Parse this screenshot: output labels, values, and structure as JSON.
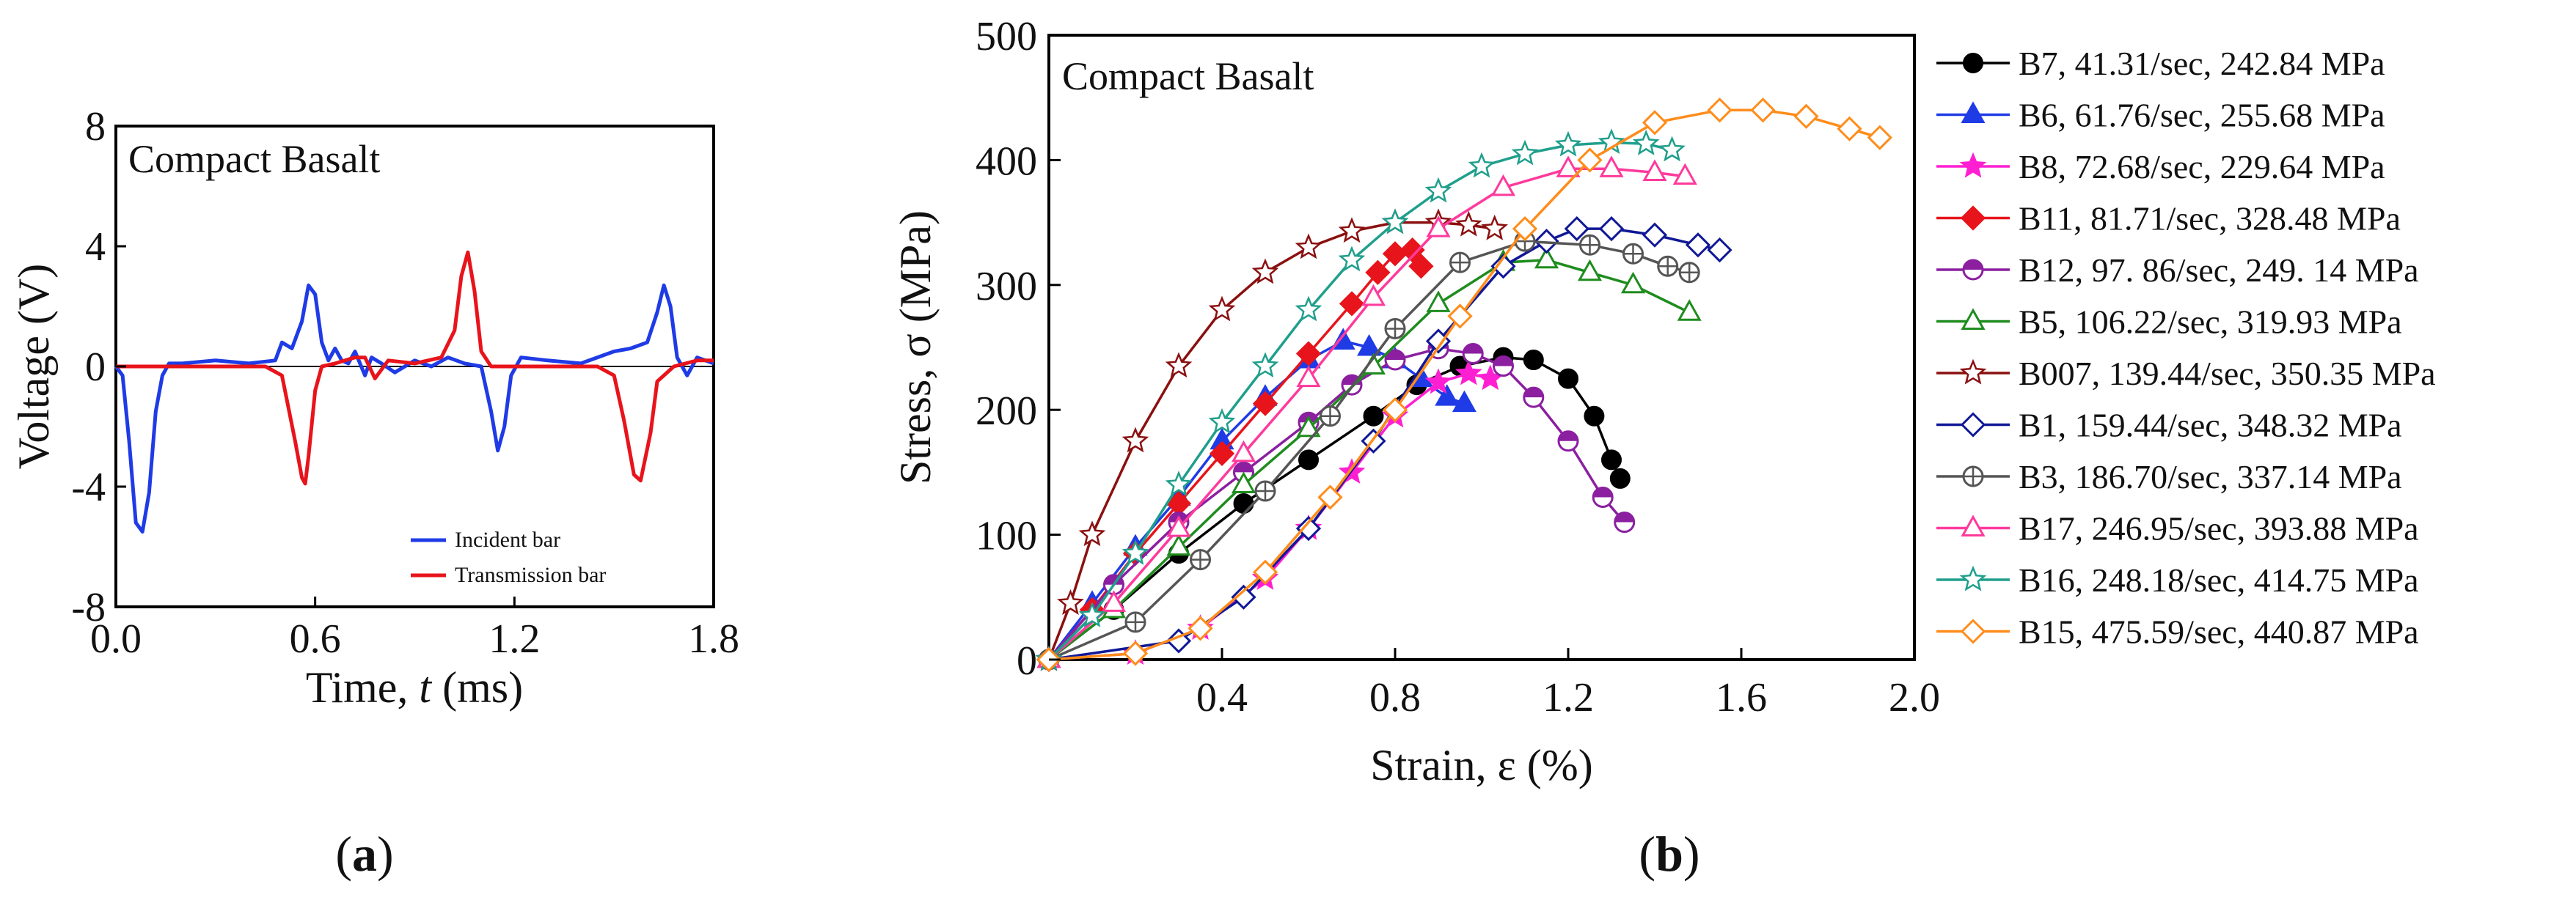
{
  "chart_data": [
    {
      "panel": "(a)",
      "panel_letter": "a",
      "type": "line",
      "annotation": "Compact Basalt",
      "xlabel": "Time, ",
      "xlabel_var": "t",
      "xlabel_unit": " (ms)",
      "ylabel": "Voltage (V)",
      "xlim": [
        0,
        1.8
      ],
      "ylim": [
        -8,
        8
      ],
      "xticks": [
        0.0,
        0.6,
        1.2,
        1.8
      ],
      "xtick_labels": [
        "0.0",
        "0.6",
        "1.2",
        "1.8"
      ],
      "yticks": [
        -8,
        -4,
        0,
        4,
        8
      ],
      "ytick_labels": [
        "-8",
        "-4",
        "0",
        "4",
        "8"
      ],
      "legend_position": "bottom-right",
      "series": [
        {
          "name": "Incident bar",
          "color": "#1f3be6",
          "x": [
            0,
            0.02,
            0.04,
            0.06,
            0.08,
            0.1,
            0.12,
            0.14,
            0.16,
            0.2,
            0.3,
            0.4,
            0.48,
            0.5,
            0.53,
            0.56,
            0.58,
            0.6,
            0.62,
            0.64,
            0.66,
            0.68,
            0.7,
            0.72,
            0.75,
            0.77,
            0.8,
            0.84,
            0.9,
            0.95,
            1.0,
            1.05,
            1.1,
            1.13,
            1.15,
            1.17,
            1.19,
            1.22,
            1.3,
            1.4,
            1.5,
            1.55,
            1.6,
            1.63,
            1.65,
            1.67,
            1.69,
            1.72,
            1.75,
            1.8
          ],
          "y": [
            0,
            -0.3,
            -2.5,
            -5.2,
            -5.5,
            -4.2,
            -1.5,
            -0.3,
            0.1,
            0.1,
            0.2,
            0.1,
            0.2,
            0.8,
            0.6,
            1.5,
            2.7,
            2.4,
            0.8,
            0.2,
            0.6,
            0.2,
            0.1,
            0.5,
            -0.3,
            0.3,
            0.1,
            -0.2,
            0.2,
            0,
            0.3,
            0.1,
            0,
            -1.5,
            -2.8,
            -2,
            -0.3,
            0.3,
            0.2,
            0.1,
            0.5,
            0.6,
            0.8,
            1.8,
            2.7,
            2,
            0.3,
            -0.3,
            0.3,
            0.1
          ]
        },
        {
          "name": "Transmission bar",
          "color": "#e8141b",
          "x": [
            0,
            0.3,
            0.45,
            0.5,
            0.54,
            0.56,
            0.57,
            0.58,
            0.6,
            0.62,
            0.66,
            0.72,
            0.75,
            0.78,
            0.82,
            0.9,
            0.98,
            1.02,
            1.04,
            1.06,
            1.08,
            1.1,
            1.13,
            1.2,
            1.35,
            1.45,
            1.5,
            1.53,
            1.56,
            1.58,
            1.61,
            1.63,
            1.68,
            1.75,
            1.8
          ],
          "y": [
            0,
            0,
            0,
            -0.3,
            -2.5,
            -3.7,
            -3.9,
            -3,
            -0.8,
            0,
            0.1,
            0.3,
            0.3,
            -0.4,
            0.2,
            0.1,
            0.3,
            1.2,
            3,
            3.8,
            2.5,
            0.5,
            0,
            0,
            0,
            0,
            -0.3,
            -1.8,
            -3.6,
            -3.8,
            -2.2,
            -0.5,
            0,
            0.2,
            0.2
          ]
        }
      ]
    },
    {
      "panel": "(b)",
      "panel_letter": "b",
      "type": "line",
      "annotation": "Compact Basalt",
      "xlabel": "Strain, ε (%)",
      "ylabel": "Stress, σ (MPa)",
      "xlim": [
        0,
        2.0
      ],
      "ylim": [
        0,
        500
      ],
      "xticks": [
        0.4,
        0.8,
        1.2,
        1.6,
        2.0
      ],
      "xtick_labels": [
        "0.4",
        "0.8",
        "1.2",
        "1.6",
        "2.0"
      ],
      "yticks": [
        0,
        100,
        200,
        300,
        400,
        500
      ],
      "ytick_labels": [
        "0",
        "100",
        "200",
        "300",
        "400",
        "500"
      ],
      "legend_position": "outside-right",
      "series": [
        {
          "name": "B7, 41.31/sec, 242.84 MPa",
          "color": "#000000",
          "marker": "circle-filled",
          "x": [
            0,
            0.15,
            0.3,
            0.45,
            0.6,
            0.75,
            0.85,
            0.95,
            1.05,
            1.12,
            1.2,
            1.26,
            1.3,
            1.32
          ],
          "y": [
            0,
            40,
            85,
            125,
            160,
            195,
            220,
            235,
            242,
            240,
            225,
            195,
            160,
            145
          ]
        },
        {
          "name": "B6, 61.76/sec, 255.68 MPa",
          "color": "#1f3be6",
          "marker": "triangle-filled",
          "x": [
            0,
            0.1,
            0.2,
            0.3,
            0.4,
            0.5,
            0.6,
            0.68,
            0.74,
            0.8,
            0.86,
            0.92,
            0.96
          ],
          "y": [
            0,
            45,
            90,
            130,
            175,
            210,
            240,
            255,
            250,
            240,
            225,
            210,
            205
          ]
        },
        {
          "name": "B8, 72.68/sec, 229.64 MPa",
          "color": "#ff1fd2",
          "marker": "star-filled",
          "x": [
            0,
            0.2,
            0.35,
            0.5,
            0.6,
            0.7,
            0.8,
            0.9,
            0.97,
            1.02
          ],
          "y": [
            0,
            5,
            25,
            65,
            105,
            150,
            195,
            222,
            229,
            225
          ]
        },
        {
          "name": "B11, 81.71/sec, 328.48 MPa",
          "color": "#e8141b",
          "marker": "diamond-filled",
          "x": [
            0,
            0.1,
            0.2,
            0.3,
            0.4,
            0.5,
            0.6,
            0.7,
            0.76,
            0.8,
            0.84,
            0.86
          ],
          "y": [
            0,
            40,
            85,
            125,
            165,
            205,
            245,
            285,
            310,
            325,
            328,
            315
          ]
        },
        {
          "name": "B12, 97. 86/sec, 249. 14 MPa",
          "color": "#8b1fa0",
          "marker": "circle-half",
          "x": [
            0,
            0.15,
            0.3,
            0.45,
            0.6,
            0.7,
            0.8,
            0.9,
            0.98,
            1.05,
            1.12,
            1.2,
            1.28,
            1.33
          ],
          "y": [
            0,
            60,
            110,
            150,
            190,
            220,
            240,
            249,
            245,
            235,
            210,
            175,
            130,
            110
          ]
        },
        {
          "name": "B5, 106.22/sec, 319.93 MPa",
          "color": "#1e8c1e",
          "marker": "triangle-open",
          "x": [
            0,
            0.15,
            0.3,
            0.45,
            0.6,
            0.75,
            0.9,
            1.05,
            1.15,
            1.25,
            1.35,
            1.48
          ],
          "y": [
            0,
            40,
            90,
            140,
            185,
            235,
            285,
            318,
            320,
            310,
            300,
            278
          ]
        },
        {
          "name": "B007, 139.44/sec, 350.35 MPa",
          "color": "#8b1010",
          "marker": "star-open",
          "x": [
            0,
            0.05,
            0.1,
            0.2,
            0.3,
            0.4,
            0.5,
            0.6,
            0.7,
            0.8,
            0.9,
            0.97,
            1.03
          ],
          "y": [
            0,
            45,
            100,
            175,
            235,
            280,
            310,
            330,
            343,
            350,
            350,
            348,
            345
          ]
        },
        {
          "name": "B1, 159.44/sec, 348.32 MPa",
          "color": "#101896",
          "marker": "diamond-open",
          "x": [
            0,
            0.3,
            0.45,
            0.6,
            0.75,
            0.9,
            1.05,
            1.15,
            1.22,
            1.3,
            1.4,
            1.5,
            1.55
          ],
          "y": [
            0,
            15,
            50,
            105,
            175,
            255,
            315,
            335,
            345,
            345,
            340,
            332,
            328
          ]
        },
        {
          "name": "B3, 186.70/sec, 337.14 MPa",
          "color": "#555555",
          "marker": "circle-cross",
          "x": [
            0,
            0.2,
            0.35,
            0.5,
            0.65,
            0.8,
            0.95,
            1.1,
            1.25,
            1.35,
            1.43,
            1.48
          ],
          "y": [
            0,
            30,
            80,
            135,
            195,
            265,
            318,
            335,
            332,
            325,
            315,
            310
          ]
        },
        {
          "name": "B17, 246.95/sec, 393.88 MPa",
          "color": "#ff3a9c",
          "marker": "triangle-open",
          "x": [
            0,
            0.15,
            0.3,
            0.45,
            0.6,
            0.75,
            0.9,
            1.05,
            1.2,
            1.3,
            1.4,
            1.47
          ],
          "y": [
            0,
            45,
            105,
            165,
            225,
            290,
            345,
            378,
            393,
            393,
            390,
            387
          ]
        },
        {
          "name": "B16, 248.18/sec, 414.75 MPa",
          "color": "#1f9f8c",
          "marker": "star-open",
          "x": [
            0,
            0.1,
            0.2,
            0.3,
            0.4,
            0.5,
            0.6,
            0.7,
            0.8,
            0.9,
            1.0,
            1.1,
            1.2,
            1.3,
            1.38,
            1.44
          ],
          "y": [
            0,
            35,
            85,
            140,
            190,
            235,
            280,
            320,
            350,
            375,
            395,
            405,
            412,
            414,
            413,
            408
          ]
        },
        {
          "name": "B15, 475.59/sec, 440.87 MPa",
          "color": "#ff8c1a",
          "marker": "diamond-open",
          "x": [
            0,
            0.2,
            0.35,
            0.5,
            0.65,
            0.8,
            0.95,
            1.1,
            1.25,
            1.4,
            1.55,
            1.65,
            1.75,
            1.85,
            1.92
          ],
          "y": [
            0,
            5,
            25,
            70,
            130,
            200,
            275,
            345,
            400,
            430,
            440,
            440,
            435,
            425,
            418
          ]
        }
      ]
    }
  ]
}
